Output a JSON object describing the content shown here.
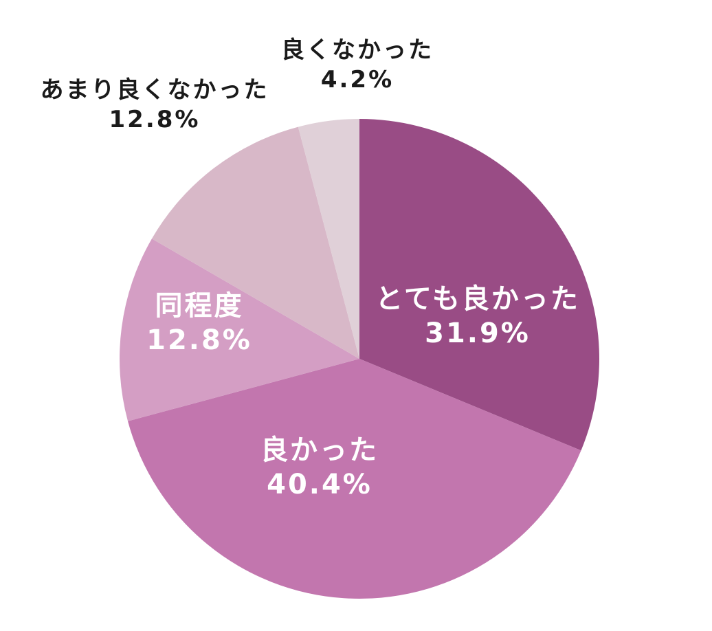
{
  "chart_data": {
    "type": "pie",
    "title": "",
    "categories": [
      "とても良かった",
      "良かった",
      "同程度",
      "あまり良くなかった",
      "良くなかった"
    ],
    "values": [
      31.9,
      40.4,
      12.8,
      12.8,
      4.2
    ],
    "value_labels": [
      "31.9%",
      "40.4%",
      "12.8%",
      "12.8%",
      "4.2%"
    ],
    "colors": [
      "#994c85",
      "#c276ae",
      "#d49ec4",
      "#d8b8c8",
      "#e0d0d8"
    ],
    "start_angle_deg": 0,
    "direction": "clockwise",
    "legend": "none",
    "label_position": [
      "inside",
      "inside",
      "inside",
      "outside",
      "outside"
    ]
  },
  "labels": {
    "very_good": {
      "name": "とても良かった",
      "value": "31.9%"
    },
    "good": {
      "name": "良かった",
      "value": "40.4%"
    },
    "same": {
      "name": "同程度",
      "value": "12.8%"
    },
    "not_very_good": {
      "name": "あまり良くなかった",
      "value": "12.8%"
    },
    "not_good": {
      "name": "良くなかった",
      "value": "4.2%"
    }
  }
}
